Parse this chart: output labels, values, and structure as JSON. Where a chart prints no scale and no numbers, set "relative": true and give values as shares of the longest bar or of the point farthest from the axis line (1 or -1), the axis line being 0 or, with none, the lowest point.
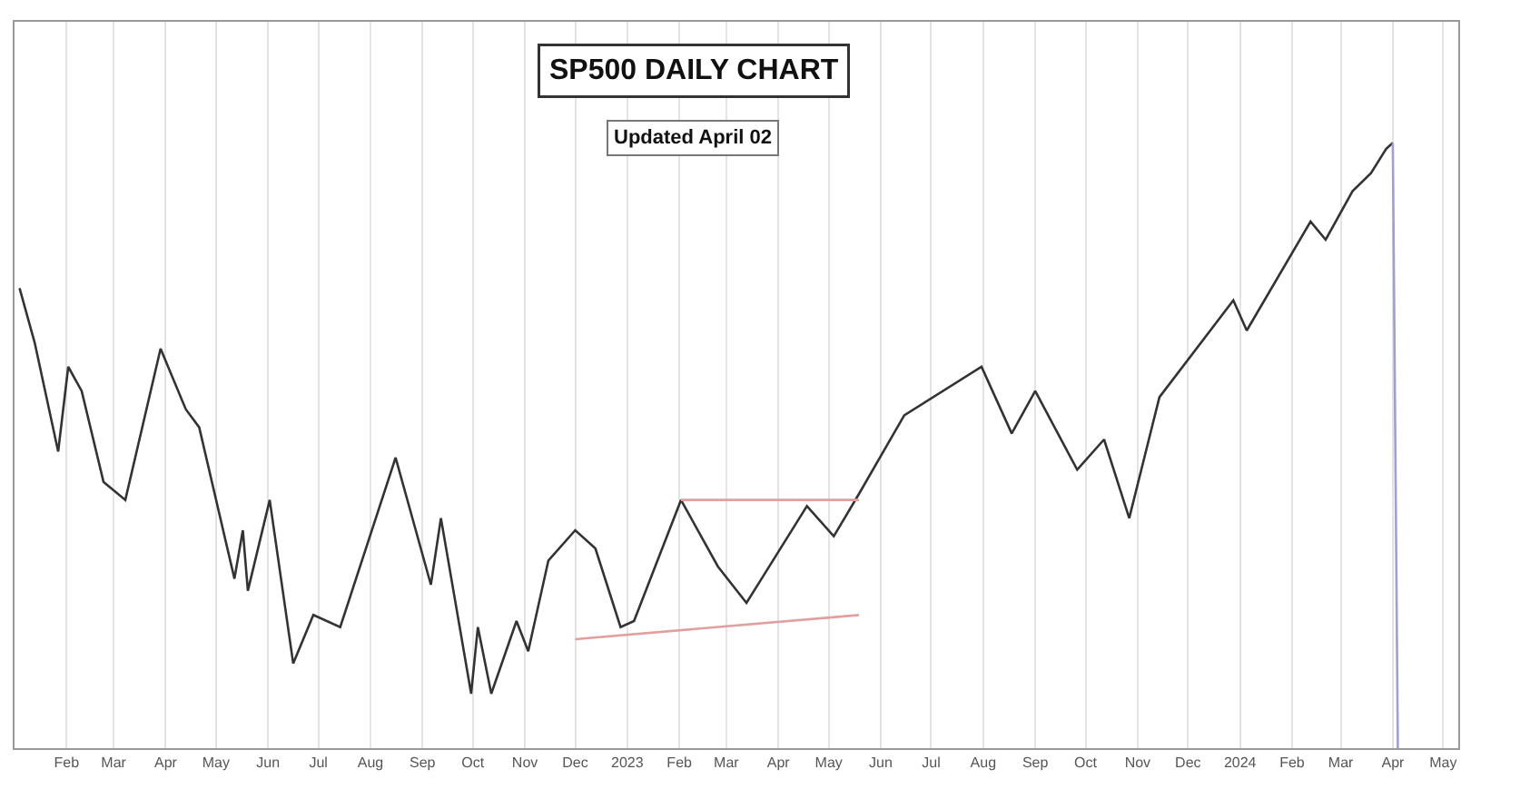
{
  "chart_data": {
    "type": "line",
    "title": "SP500 DAILY CHART",
    "subtitle": "Updated April 02",
    "relative": true,
    "grid": "x",
    "marker": "none",
    "line_style": "solid",
    "xlim": [
      "2022-01-01",
      "2024-05-10"
    ],
    "xticks": [
      {
        "value": "2022-02-01",
        "label": "Feb"
      },
      {
        "value": "2022-03-01",
        "label": "Mar"
      },
      {
        "value": "2022-04-01",
        "label": "Apr"
      },
      {
        "value": "2022-05-01",
        "label": "May"
      },
      {
        "value": "2022-06-01",
        "label": "Jun"
      },
      {
        "value": "2022-07-01",
        "label": "Jul"
      },
      {
        "value": "2022-08-01",
        "label": "Aug"
      },
      {
        "value": "2022-09-01",
        "label": "Sep"
      },
      {
        "value": "2022-10-01",
        "label": "Oct"
      },
      {
        "value": "2022-11-01",
        "label": "Nov"
      },
      {
        "value": "2022-12-01",
        "label": "Dec"
      },
      {
        "value": "2023-01-01",
        "label": "2023"
      },
      {
        "value": "2023-02-01",
        "label": "Feb"
      },
      {
        "value": "2023-03-01",
        "label": "Mar"
      },
      {
        "value": "2023-04-01",
        "label": "Apr"
      },
      {
        "value": "2023-05-01",
        "label": "May"
      },
      {
        "value": "2023-06-01",
        "label": "Jun"
      },
      {
        "value": "2023-07-01",
        "label": "Jul"
      },
      {
        "value": "2023-08-01",
        "label": "Aug"
      },
      {
        "value": "2023-09-01",
        "label": "Sep"
      },
      {
        "value": "2023-10-01",
        "label": "Oct"
      },
      {
        "value": "2023-11-01",
        "label": "Nov"
      },
      {
        "value": "2023-12-01",
        "label": "Dec"
      },
      {
        "value": "2024-01-01",
        "label": "2024"
      },
      {
        "value": "2024-02-01",
        "label": "Feb"
      },
      {
        "value": "2024-03-01",
        "label": "Mar"
      },
      {
        "value": "2024-04-01",
        "label": "Apr"
      },
      {
        "value": "2024-05-01",
        "label": "May"
      }
    ],
    "series": [
      {
        "color": "#333333",
        "x": [
          "2022-01-04",
          "2022-01-13",
          "2022-01-27",
          "2022-02-02",
          "2022-02-10",
          "2022-02-23",
          "2022-03-08",
          "2022-03-29",
          "2022-04-13",
          "2022-04-21",
          "2022-05-12",
          "2022-05-17",
          "2022-05-20",
          "2022-06-02",
          "2022-06-16",
          "2022-06-28",
          "2022-07-14",
          "2022-08-16",
          "2022-09-06",
          "2022-09-12",
          "2022-09-30",
          "2022-10-04",
          "2022-10-12",
          "2022-10-27",
          "2022-11-03",
          "2022-11-15",
          "2022-12-01",
          "2022-12-13",
          "2022-12-28",
          "2023-01-05",
          "2023-02-02",
          "2023-02-24",
          "2023-03-13",
          "2023-03-22",
          "2023-04-18",
          "2023-05-04",
          "2023-05-19",
          "2023-06-15",
          "2023-07-31",
          "2023-08-18",
          "2023-09-01",
          "2023-09-26",
          "2023-10-12",
          "2023-10-27",
          "2023-11-14",
          "2023-12-28",
          "2024-01-05",
          "2024-02-12",
          "2024-02-21",
          "2024-03-08",
          "2024-03-19",
          "2024-03-28",
          "2024-04-01"
        ],
        "values": [
          0.76,
          0.67,
          0.49,
          0.63,
          0.59,
          0.44,
          0.41,
          0.66,
          0.56,
          0.53,
          0.28,
          0.36,
          0.26,
          0.41,
          0.14,
          0.22,
          0.2,
          0.48,
          0.27,
          0.38,
          0.09,
          0.2,
          0.09,
          0.21,
          0.16,
          0.31,
          0.36,
          0.33,
          0.2,
          0.21,
          0.41,
          0.3,
          0.24,
          0.28,
          0.4,
          0.35,
          0.42,
          0.55,
          0.63,
          0.52,
          0.59,
          0.46,
          0.51,
          0.38,
          0.58,
          0.74,
          0.69,
          0.87,
          0.84,
          0.92,
          0.95,
          0.99,
          1.0
        ]
      },
      {
        "color": "#a0a0d0",
        "x": [
          "2024-04-01",
          "2024-04-04"
        ],
        "values": [
          1.0,
          0
        ]
      },
      {
        "color": "#e0a0a0",
        "x": [
          "2023-02-02",
          "2023-05-19"
        ],
        "values": [
          0.41,
          0.41
        ]
      },
      {
        "color": "#e0a0a0",
        "x": [
          "2022-12-01",
          "2023-05-19"
        ],
        "values": [
          0.18,
          0.22
        ]
      }
    ]
  }
}
